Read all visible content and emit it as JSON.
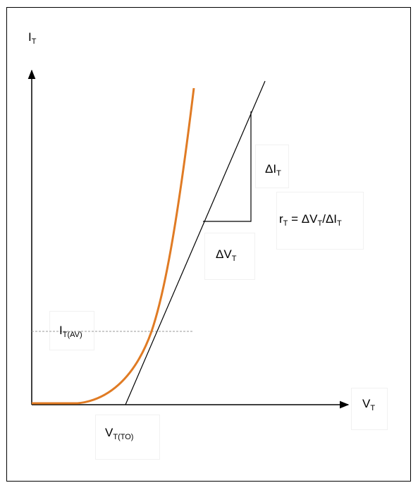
{
  "labels": {
    "y_axis": {
      "main": "I",
      "sub": "T"
    },
    "x_axis": {
      "main": "V",
      "sub": "T"
    },
    "threshold_current": {
      "main": "I",
      "sub": "T(AV)"
    },
    "threshold_voltage": {
      "main": "V",
      "sub": "T(TO)"
    },
    "delta_current": {
      "main": "ΔI",
      "sub": "T"
    },
    "delta_voltage": {
      "main": "ΔV",
      "sub": "T"
    },
    "resistance_formula": {
      "p1": "r",
      "s1": "T",
      "p2": " = ΔV",
      "s2": "T",
      "p3": "/ΔI",
      "s3": "T"
    }
  },
  "colors": {
    "curve": "#e07b24",
    "axes": "#000000",
    "dashed_line": "#999999"
  }
}
